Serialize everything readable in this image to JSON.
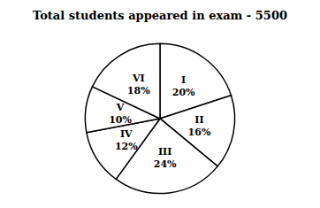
{
  "chart_data": {
    "type": "pie",
    "title": "Total students appeared in exam - 5500",
    "categories": [
      "I",
      "II",
      "III",
      "IV",
      "V",
      "VI"
    ],
    "values": [
      20,
      16,
      24,
      12,
      10,
      18
    ],
    "value_labels": [
      "20%",
      "16%",
      "24%",
      "12%",
      "10%",
      "18%"
    ],
    "colors": [
      "#ffffff",
      "#ffffff",
      "#ffffff",
      "#ffffff",
      "#ffffff",
      "#ffffff"
    ],
    "data_labels": true
  }
}
